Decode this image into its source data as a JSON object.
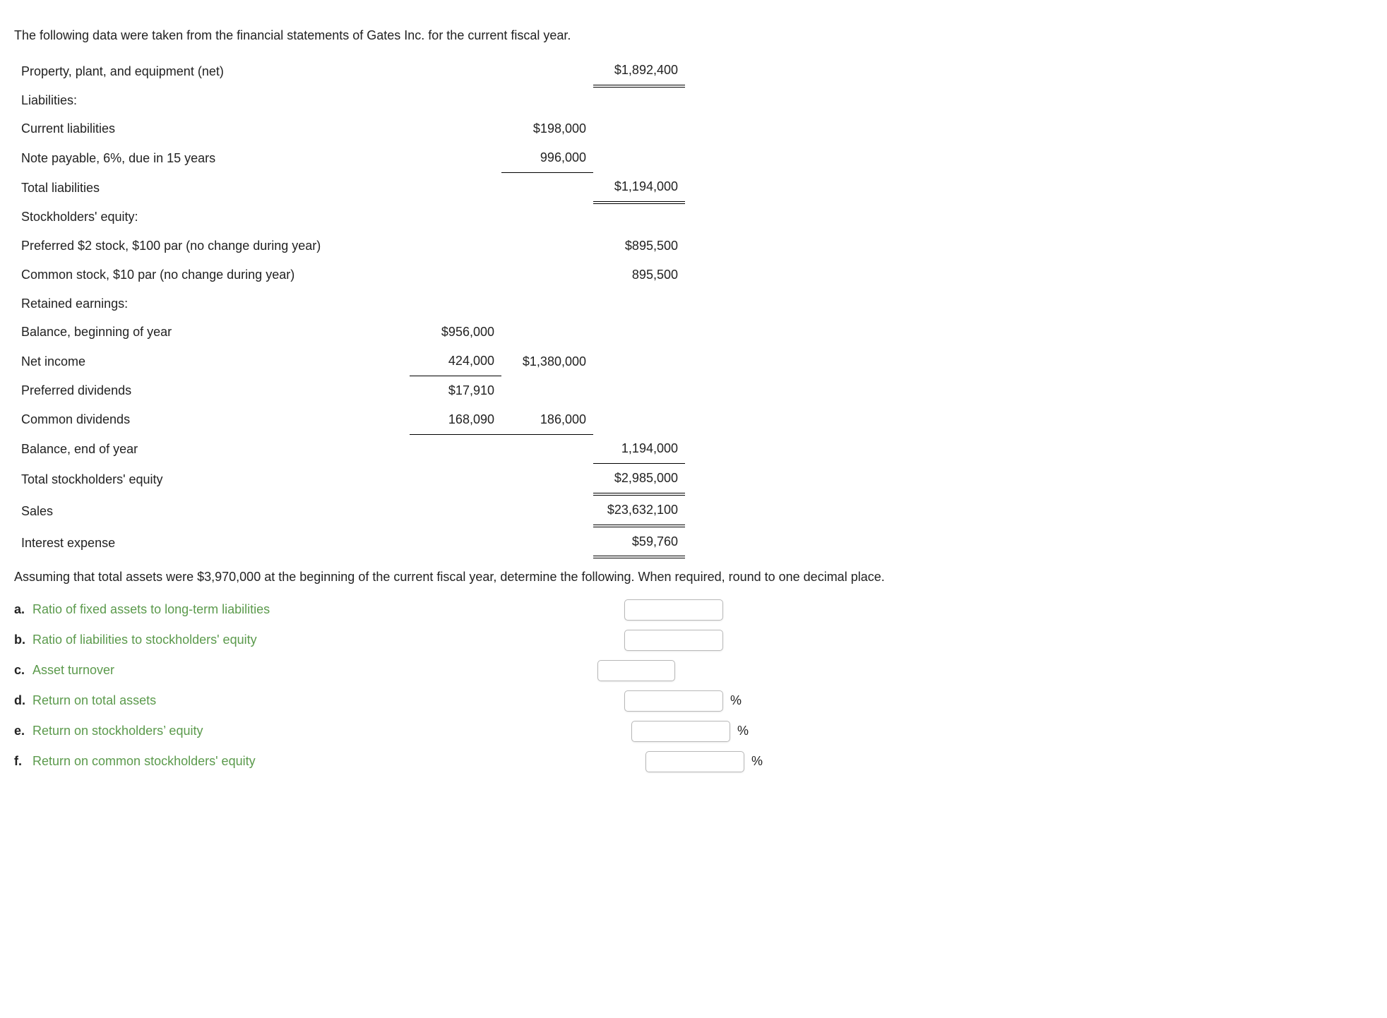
{
  "intro": "The following data were taken from the financial statements of Gates Inc. for the current fiscal year.",
  "financials": {
    "ppe_net": {
      "label": "Property, plant, and equipment (net)",
      "value": "$1,892,400"
    },
    "liabilities_header": "Liabilities:",
    "current_liabilities": {
      "label": "Current liabilities",
      "value": "$198,000"
    },
    "note_payable": {
      "label": "Note payable, 6%, due in 15 years",
      "value": "996,000"
    },
    "total_liabilities": {
      "label": "Total liabilities",
      "value": "$1,194,000"
    },
    "se_header": "Stockholders' equity:",
    "preferred_stock": {
      "label": "Preferred $2 stock, $100 par (no change during year)",
      "value": "$895,500"
    },
    "common_stock": {
      "label": "Common stock, $10 par (no change during year)",
      "value": "895,500"
    },
    "re_header": "Retained earnings:",
    "re_balance_beg": {
      "label": "Balance, beginning of year",
      "value": "$956,000"
    },
    "re_net_income": {
      "label": "Net income",
      "value": "424,000",
      "subtotal": "$1,380,000"
    },
    "re_pref_div": {
      "label": "Preferred dividends",
      "value": "$17,910"
    },
    "re_com_div": {
      "label": "Common dividends",
      "value": "168,090",
      "subtotal": "186,000"
    },
    "re_balance_end": {
      "label": "Balance, end of year",
      "value": "1,194,000"
    },
    "total_se": {
      "label": "Total stockholders' equity",
      "value": "$2,985,000"
    },
    "sales": {
      "label": "Sales",
      "value": "$23,632,100"
    },
    "interest_expense": {
      "label": "Interest expense",
      "value": "$59,760"
    }
  },
  "instruction": "Assuming that total assets were $3,970,000 at the beginning of the current fiscal year, determine the following. When required, round to one decimal place.",
  "questions": {
    "a": {
      "lead": "a.",
      "text": "Ratio of fixed assets to long-term liabilities",
      "suffix": ""
    },
    "b": {
      "lead": "b.",
      "text": "Ratio of liabilities to stockholders' equity",
      "suffix": ""
    },
    "c": {
      "lead": "c.",
      "text": "Asset turnover",
      "suffix": ""
    },
    "d": {
      "lead": "d.",
      "text": "Return on total assets",
      "suffix": "%"
    },
    "e": {
      "lead": "e.",
      "text": "Return on stockholders’ equity",
      "suffix": "%"
    },
    "f": {
      "lead": "f.",
      "text": "Return on common stockholders' equity",
      "suffix": "%"
    }
  },
  "styling": {
    "text_color": "#222222",
    "link_color": "#5b9a4c",
    "background": "#ffffff",
    "font_family": "Verdana",
    "base_font_size_pt": 14,
    "rule_color": "#000000",
    "input_border_color": "#b8b8b8"
  }
}
